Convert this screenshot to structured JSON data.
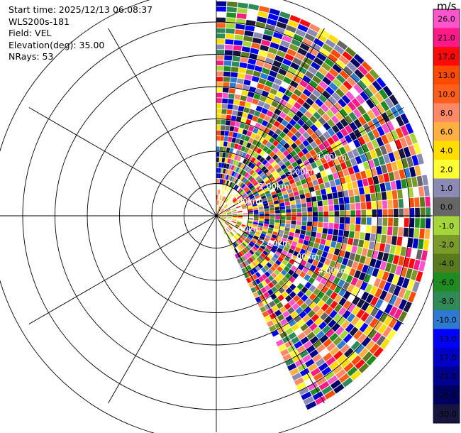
{
  "header": {
    "start_time": "Start time: 2025/12/13 06:08:37",
    "instrument": "WLS200s-181",
    "field": "Field: VEL",
    "elevation": "Elevation(deg): 35.00",
    "nrays": "NRays: 53"
  },
  "colorbar": {
    "unit": "m/s",
    "bins": [
      {
        "label": "26.0",
        "color": "#ff55cc"
      },
      {
        "label": "21.0",
        "color": "#ff1a88"
      },
      {
        "label": "17.0",
        "color": "#ff0a0a"
      },
      {
        "label": "13.0",
        "color": "#ff4a00"
      },
      {
        "label": "10.0",
        "color": "#ff5f1a"
      },
      {
        "label": "8.0",
        "color": "#ff8866"
      },
      {
        "label": "6.0",
        "color": "#ffb040"
      },
      {
        "label": "4.0",
        "color": "#ffdd00"
      },
      {
        "label": "2.0",
        "color": "#ffff33"
      },
      {
        "label": "1.0",
        "color": "#8a8ab4"
      },
      {
        "label": "0.0",
        "color": "#666666"
      },
      {
        "label": "-1.0",
        "color": "#a4d63a"
      },
      {
        "label": "-2.0",
        "color": "#7a9a2a"
      },
      {
        "label": "-4.0",
        "color": "#5a7a1e"
      },
      {
        "label": "-6.0",
        "color": "#1e8c1e"
      },
      {
        "label": "-8.0",
        "color": "#2e8b57"
      },
      {
        "label": "-10.0",
        "color": "#2e7ad0"
      },
      {
        "label": "-13.0",
        "color": "#0000ff"
      },
      {
        "label": "-17.0",
        "color": "#0000c8"
      },
      {
        "label": "-21.0",
        "color": "#000090"
      },
      {
        "label": "-26.0",
        "color": "#000060"
      },
      {
        "label": "-30.0",
        "color": "#151540"
      }
    ]
  },
  "chart_data": {
    "type": "heatmap",
    "projection": "polar PPI",
    "field": "VEL",
    "units": "m/s",
    "nrays": 53,
    "azimuth_range_deg": [
      0,
      155
    ],
    "range_rings_km": [
      1,
      2,
      3,
      4,
      5,
      6,
      7
    ],
    "ring_labels": [
      {
        "label": "1.00km",
        "bearing": "east-northeast"
      },
      {
        "label": "2.00km",
        "bearing": "east-northeast"
      },
      {
        "label": "3.00km",
        "bearing": "east-northeast"
      },
      {
        "label": "4.00km",
        "bearing": "east-northeast"
      },
      {
        "label": "1.00km",
        "bearing": "east-southeast"
      },
      {
        "label": "2.00km",
        "bearing": "east-southeast"
      },
      {
        "label": "3.00km",
        "bearing": "east-southeast"
      },
      {
        "label": "4.00km",
        "bearing": "east-southeast"
      }
    ],
    "vmin": -30.0,
    "vmax": 30.0
  }
}
